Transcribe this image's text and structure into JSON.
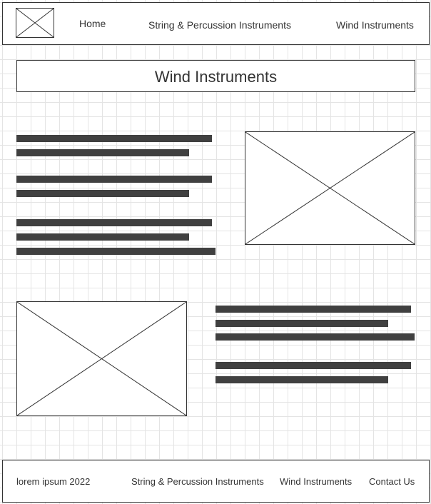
{
  "header": {
    "logo_icon": "image-placeholder-icon",
    "nav": {
      "home": "Home",
      "string_percussion": "String & Percussion Instruments",
      "wind": "Wind Instruments"
    }
  },
  "main": {
    "title": "Wind Instruments",
    "image_icon": "image-placeholder-icon"
  },
  "footer": {
    "copyright": "lorem ipsum 2022",
    "links": {
      "string_percussion": "String & Percussion Instruments",
      "wind": "Wind Instruments",
      "contact": "Contact Us"
    }
  },
  "colors": {
    "border": "#333333",
    "text_bar": "#404040",
    "grid": "#e4e4e4"
  }
}
